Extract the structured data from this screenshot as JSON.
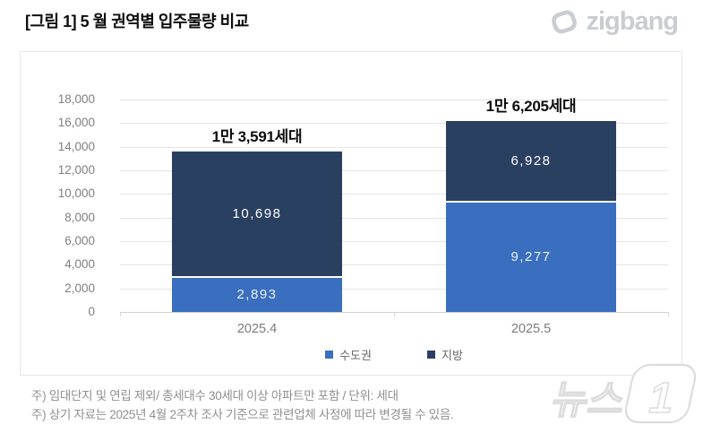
{
  "header": {
    "title": "[그림 1] 5 월 권역별 입주물량 비교",
    "brand": {
      "name": "zigbang",
      "color": "#c9cdd3"
    }
  },
  "chart_data": {
    "type": "bar",
    "stacked": true,
    "title": "5월 권역별 입주물량 비교",
    "categories": [
      "2025.4",
      "2025.5"
    ],
    "series": [
      {
        "name": "수도권",
        "color": "#3a6ebe",
        "values": [
          2893,
          9277
        ],
        "value_labels": [
          "2,893",
          "9,277"
        ],
        "label_color": "#e9f1fb"
      },
      {
        "name": "지방",
        "color": "#2a4061",
        "values": [
          10698,
          6928
        ],
        "value_labels": [
          "10,698",
          "6,928"
        ],
        "label_color": "#ffffff"
      }
    ],
    "totals": [
      13591,
      16205
    ],
    "total_labels": [
      "1만 3,591세대",
      "1만 6,205세대"
    ],
    "ylim": [
      0,
      18000
    ],
    "ytick_step": 2000,
    "ytick_labels": [
      "0",
      "2,000",
      "4,000",
      "6,000",
      "8,000",
      "10,000",
      "12,000",
      "14,000",
      "16,000",
      "18,000"
    ],
    "grid": true,
    "legend_position": "bottom",
    "unit": "세대"
  },
  "footnotes": [
    "주) 임대단지 및 연립 제외/ 총세대수 30세대 이상 아파트만 포함 / 단위: 세대",
    "주) 상기 자료는 2025년 4월 2주차 조사 기준으로 관련업체 사정에 따라 변경될 수 있음."
  ],
  "watermark": {
    "text": "뉴스",
    "badge": "1"
  }
}
